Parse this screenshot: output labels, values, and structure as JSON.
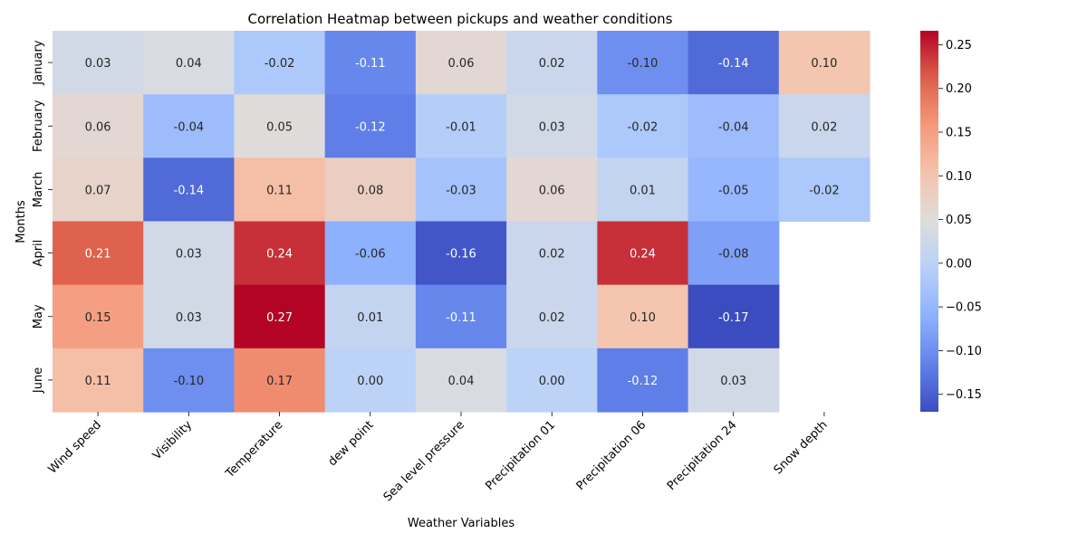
{
  "chart_data": {
    "type": "heatmap",
    "title": "Correlation Heatmap between pickups and weather conditions",
    "xlabel": "Weather Variables",
    "ylabel": "Months",
    "x_categories": [
      "Wind speed",
      "Visibility",
      "Temperature",
      "dew point",
      "Sea level pressure",
      "Precipitation 01",
      "Precipitation 06",
      "Precipitation 24",
      "Snow depth"
    ],
    "y_categories": [
      "January",
      "February",
      "March",
      "April",
      "May",
      "June"
    ],
    "values": [
      [
        0.03,
        0.04,
        -0.02,
        -0.11,
        0.06,
        0.02,
        -0.1,
        -0.14,
        0.1
      ],
      [
        0.06,
        -0.04,
        0.05,
        -0.12,
        -0.01,
        0.03,
        -0.02,
        -0.04,
        0.02
      ],
      [
        0.07,
        -0.14,
        0.11,
        0.08,
        -0.03,
        0.06,
        0.01,
        -0.05,
        -0.02
      ],
      [
        0.21,
        0.03,
        0.24,
        -0.06,
        -0.16,
        0.02,
        0.24,
        -0.08,
        null
      ],
      [
        0.15,
        0.03,
        0.27,
        0.01,
        -0.11,
        0.02,
        0.1,
        -0.17,
        null
      ],
      [
        0.11,
        -0.1,
        0.17,
        0.0,
        0.04,
        0.0,
        -0.12,
        0.03,
        null
      ]
    ],
    "value_format_decimals": 2,
    "colormap": "coolwarm",
    "color_range": [
      -0.17,
      0.266
    ],
    "colorbar_ticks": [
      "0.25",
      "0.20",
      "0.15",
      "0.10",
      "0.05",
      "0.00",
      "−0.05",
      "−0.10",
      "−0.15"
    ],
    "colorbar_tick_values": [
      0.25,
      0.2,
      0.15,
      0.1,
      0.05,
      0.0,
      -0.05,
      -0.1,
      -0.15
    ],
    "grid": false,
    "colorbar_placement": "right"
  }
}
